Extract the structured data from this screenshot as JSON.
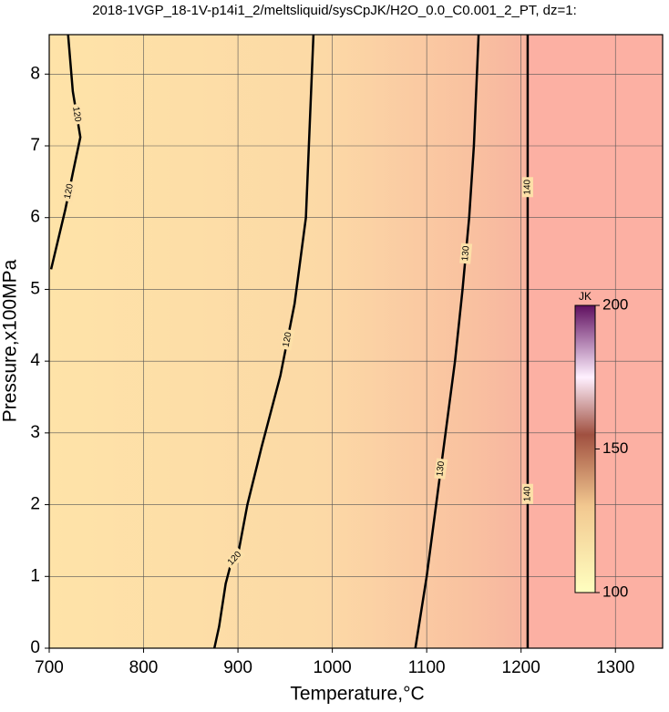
{
  "chart_data": {
    "type": "contour",
    "title": "2018-1VGP_18-1V-p14i1_2/meltsliquid/sysCpJK/H2O_0.0_C0.001_2_PT, dz=1:",
    "x_label": "Temperature,°C",
    "y_label": "Pressure,x100MPa",
    "xlim": [
      700,
      1350
    ],
    "ylim": [
      0,
      8.55
    ],
    "xticks": [
      700,
      800,
      900,
      1000,
      1100,
      1200,
      1300
    ],
    "yticks": [
      0,
      1,
      2,
      3,
      4,
      5,
      6,
      7,
      8
    ],
    "grid": true,
    "color": "#000000",
    "series": [
      {
        "name": "120",
        "x": [
          720,
          725,
          733,
          725,
          717,
          702
        ],
        "y": [
          8.55,
          7.76,
          7.12,
          6.62,
          6.11,
          5.28
        ]
      },
      {
        "name": "120",
        "x": [
          875,
          880,
          887,
          893,
          900,
          910,
          925,
          945,
          960,
          972,
          980
        ],
        "y": [
          0,
          0.3,
          0.9,
          1.2,
          1.3,
          2.0,
          2.8,
          3.8,
          4.8,
          6.0,
          8.55
        ]
      },
      {
        "name": "130",
        "x": [
          1088,
          1100,
          1110,
          1120,
          1130,
          1138,
          1145,
          1150,
          1155
        ],
        "y": [
          0,
          1.0,
          2.0,
          3.0,
          4.0,
          5.0,
          6.0,
          7.0,
          8.55
        ]
      },
      {
        "name": "140",
        "x": [
          1207,
          1207,
          1207
        ],
        "y": [
          0,
          4.3,
          8.55
        ]
      }
    ],
    "colorbar": {
      "title": "JK",
      "lim": [
        100,
        200
      ],
      "ticks": [
        100,
        150,
        200
      ]
    }
  }
}
